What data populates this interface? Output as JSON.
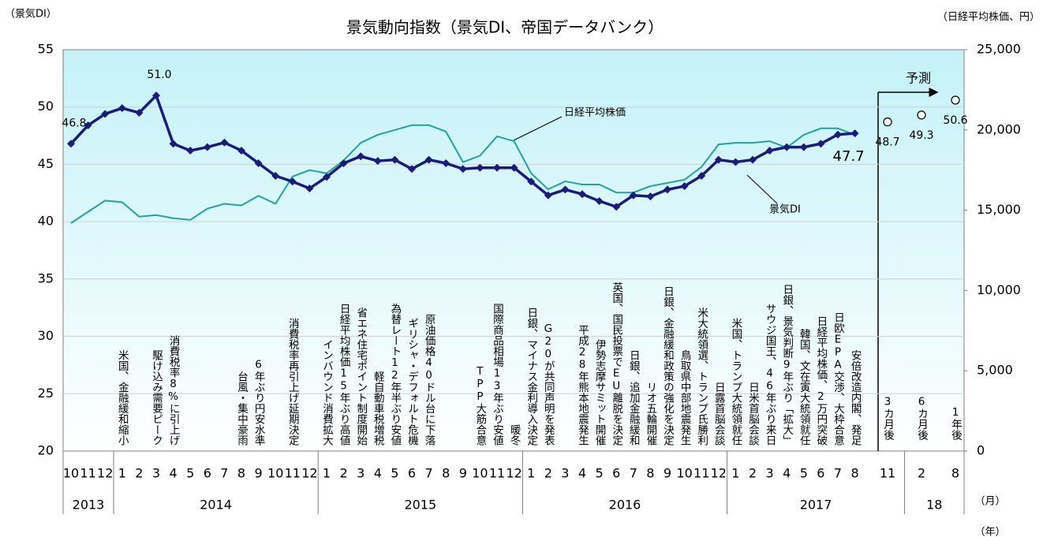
{
  "chart_data": {
    "type": "line",
    "title": "景気動向指数（景気DI、帝国データバンク）",
    "y_label": "（景気DI）",
    "y2_label": "（日経平均株価、円）",
    "x_label": "（月）",
    "year_label": "（年）",
    "categories": [
      "10",
      "11",
      "12",
      "1",
      "2",
      "3",
      "4",
      "5",
      "6",
      "7",
      "8",
      "9",
      "10",
      "11",
      "12",
      "1",
      "2",
      "3",
      "4",
      "5",
      "6",
      "7",
      "8",
      "9",
      "10",
      "11",
      "12",
      "1",
      "2",
      "3",
      "4",
      "5",
      "6",
      "7",
      "8",
      "9",
      "10",
      "11",
      "12",
      "1",
      "2",
      "3",
      "4",
      "5",
      "6",
      "7",
      "8"
    ],
    "years": [
      "2013",
      "2014",
      "2015",
      "2016",
      "2017",
      "18"
    ],
    "ylim": [
      20,
      55
    ],
    "yticks": [
      20,
      25,
      30,
      35,
      40,
      45,
      50,
      55
    ],
    "y2lim": [
      0,
      25000
    ],
    "y2ticks": [
      0,
      {
        "value": 5000,
        "label": "5,000"
      },
      {
        "value": 10000,
        "label": "10,000"
      },
      {
        "value": 15000,
        "label": "15,000"
      },
      {
        "value": 20000,
        "label": "20,000"
      },
      {
        "value": 25000,
        "label": "25,000"
      }
    ],
    "grid": true,
    "series": [
      {
        "name": "日経平均株価",
        "color": "#22a39c",
        "axis": "y2",
        "values": [
          14200,
          14900,
          15600,
          15500,
          14600,
          14700,
          14500,
          14400,
          15100,
          15400,
          15300,
          15900,
          15400,
          17100,
          17500,
          17300,
          18100,
          19200,
          19700,
          20000,
          20300,
          20300,
          19900,
          18000,
          18400,
          19600,
          19300,
          17300,
          16300,
          16800,
          16600,
          16600,
          16100,
          16100,
          16500,
          16700,
          16900,
          17700,
          19100,
          19200,
          19200,
          19300,
          18900,
          19700,
          20100,
          20100,
          19700
        ]
      },
      {
        "name": "景気DI",
        "color": "#1b1b7d",
        "values": [
          46.8,
          48.4,
          49.4,
          49.9,
          49.5,
          51.0,
          46.8,
          46.2,
          46.5,
          46.9,
          46.2,
          45.1,
          44.0,
          43.5,
          42.9,
          43.9,
          45.1,
          45.7,
          45.3,
          45.4,
          44.6,
          45.4,
          45.1,
          44.6,
          44.7,
          44.7,
          44.7,
          43.5,
          42.3,
          42.8,
          42.4,
          41.8,
          41.3,
          42.3,
          42.2,
          42.8,
          43.1,
          44.0,
          45.4,
          45.2,
          45.4,
          46.2,
          46.5,
          46.5,
          46.8,
          47.6,
          47.7
        ],
        "value_labels": [
          "46.8",
          null,
          null,
          null,
          null,
          "51.0",
          null,
          null,
          null,
          null,
          null,
          null,
          null,
          null,
          null,
          null,
          null,
          null,
          null,
          null,
          null,
          null,
          null,
          null,
          null,
          null,
          null,
          null,
          null,
          null,
          null,
          null,
          null,
          null,
          null,
          null,
          null,
          null,
          null,
          null,
          null,
          null,
          null,
          null,
          null,
          null,
          "47.7"
        ]
      }
    ],
    "notes": [
      null,
      null,
      null,
      "米国、金融緩和縮小",
      null,
      "駆け込み需要ピーク",
      "消費税率8%に引上げ",
      null,
      null,
      null,
      "台風・集中豪雨",
      "6年ぶり円安水準",
      null,
      "消費税率再引上げ延期決定",
      null,
      "インバウンド消費拡大",
      "日経平均株価15年ぶり高値",
      "省エネ住宅ポイント制度開始",
      "軽自動車税増税",
      "為替レート12年半ぶり安値",
      "ギリシャ・デフォルト危機",
      "原油価格40ドル台に下落",
      null,
      null,
      "TPP大筋合意",
      "国際商品相場13年ぶり安値",
      "暖冬",
      "日銀、マイナス金利導入決定",
      "G20が共同声明を発表",
      null,
      "平成28年熊本地震発生",
      "伊勢志摩サミット開催",
      "英国、国民投票でEU離脱を決定",
      "日銀、追加金融緩和",
      "リオ五輪開催",
      "日銀、金融緩和政策の強化を決定",
      "鳥取県中部地震発生",
      "米大統領選、トランプ氏勝利",
      "日露首脳会談",
      "米国、トランプ大統領就任",
      "日米首脳会談",
      "サウジ国王、46年ぶり来日",
      "日銀、景気判断9年ぶり「拡大」",
      "韓国、文在寅大統領就任",
      "日経平均株価、2万円突破",
      "日欧EPA交渉、大枠合意",
      "安倍改造内閣、発足"
    ],
    "forecast": {
      "label": "予測",
      "categories": [
        "11",
        "2",
        "8"
      ],
      "values": [
        48.7,
        49.3,
        50.6
      ],
      "notes": [
        "3カ月後",
        "6カ月後",
        "1年後"
      ]
    }
  }
}
